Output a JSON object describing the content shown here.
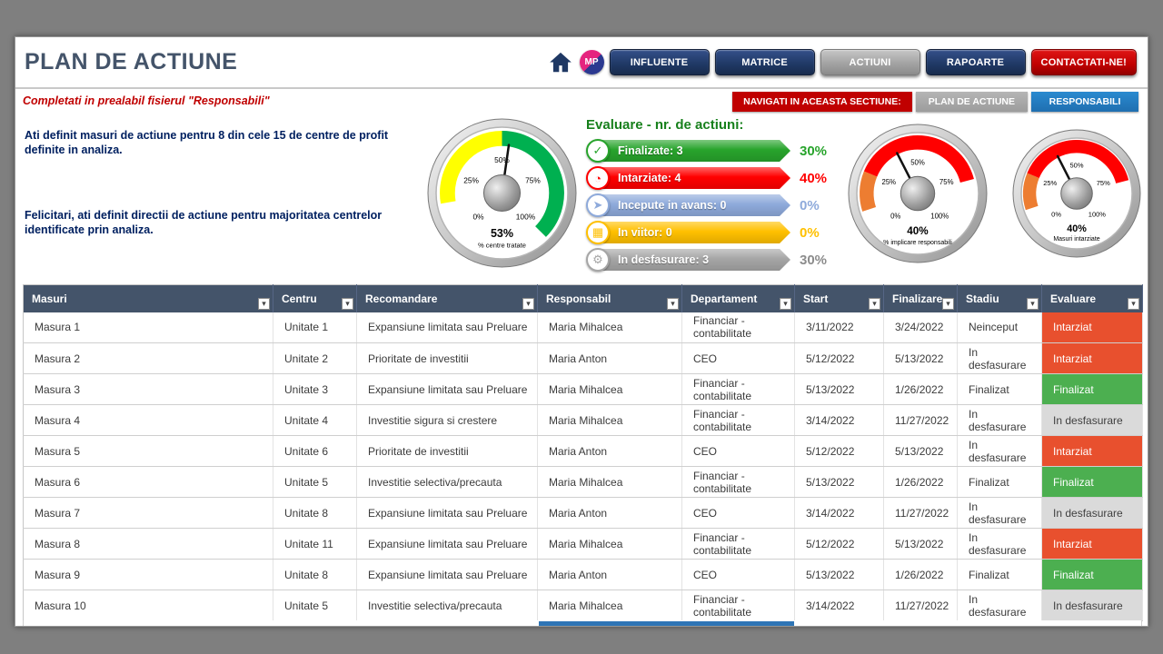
{
  "theme": {
    "header_text": "#44546A",
    "nav_navy": "#1F3864",
    "nav_red": "#C00000",
    "accent_blue": "#1F6FB0",
    "notice_red": "#C00000",
    "message_navy": "#002060",
    "table_header_bg": "#44546A",
    "legend_title_green": "#17801c"
  },
  "header": {
    "title": "PLAN DE ACTIUNE",
    "logo_text": "MP",
    "nav": [
      {
        "label": "INFLUENTE",
        "style": "navy"
      },
      {
        "label": "MATRICE",
        "style": "navy"
      },
      {
        "label": "ACTIUNI",
        "style": "gray"
      },
      {
        "label": "RAPOARTE",
        "style": "navy"
      },
      {
        "label": "CONTACTATI-NE!",
        "style": "red"
      }
    ]
  },
  "subheader": {
    "notice": "Completati in prealabil fisierul \"Responsabili\"",
    "navigate_label": "NAVIGATI IN ACEASTA SECTIUNE:",
    "buttons": [
      {
        "label": "PLAN DE ACTIUNE",
        "style": "gray"
      },
      {
        "label": "RESPONSABILI",
        "style": "blue"
      }
    ]
  },
  "messages": {
    "line1": "Ati definit masuri de actiune pentru 8 din cele 15 de centre de profit definite in analiza.",
    "line2": "Felicitari, ati definit directii de actiune pentru majoritatea centrelor identificate prin analiza."
  },
  "chart_data": [
    {
      "type": "gauge",
      "value": 53,
      "unit": "%",
      "label": "% centre tratate",
      "range": [
        0,
        100
      ],
      "ticks": [
        "0%",
        "25%",
        "50%",
        "75%",
        "100%"
      ],
      "segments": [
        {
          "from": 0,
          "to": 13,
          "color": "#FFFFFF"
        },
        {
          "from": 13,
          "to": 50,
          "color": "#FFFF00"
        },
        {
          "from": 50,
          "to": 100,
          "color": "#00B050"
        }
      ]
    },
    {
      "type": "gauge",
      "value": 40,
      "unit": "%",
      "label": "% implicare responsabili",
      "range": [
        0,
        100
      ],
      "ticks": [
        "0%",
        "25%",
        "50%",
        "75%",
        "100%"
      ],
      "segments": [
        {
          "from": 0,
          "to": 10,
          "color": "#FFFFFF"
        },
        {
          "from": 10,
          "to": 25,
          "color": "#ED7D31"
        },
        {
          "from": 25,
          "to": 78,
          "color": "#FF0000"
        },
        {
          "from": 78,
          "to": 100,
          "color": "#FFFFFF"
        }
      ]
    },
    {
      "type": "gauge",
      "value": 40,
      "unit": "%",
      "label": "Masuri intarziate",
      "range": [
        0,
        100
      ],
      "ticks": [
        "0%",
        "25%",
        "50%",
        "75%",
        "100%"
      ],
      "segments": [
        {
          "from": 0,
          "to": 10,
          "color": "#FFFFFF"
        },
        {
          "from": 10,
          "to": 25,
          "color": "#ED7D31"
        },
        {
          "from": 25,
          "to": 78,
          "color": "#FF0000"
        },
        {
          "from": 78,
          "to": 100,
          "color": "#FFFFFF"
        }
      ]
    },
    {
      "type": "bar",
      "title": "Evaluare - nr. de actiuni:",
      "categories": [
        "Finalizate",
        "Intarziate",
        "Incepute in avans",
        "In viitor",
        "In desfasurare"
      ],
      "values": [
        3,
        4,
        0,
        0,
        3
      ],
      "percents": [
        "30%",
        "40%",
        "0%",
        "0%",
        "30%"
      ],
      "colors": [
        "#28A42C",
        "#FF0000",
        "#8EAADB",
        "#FFC000",
        "#A6A6A6"
      ],
      "pct_colors": [
        "#28A42C",
        "#FF0000",
        "#8EAADB",
        "#FFC000",
        "#8C8C8C"
      ],
      "icons": [
        {
          "name": "swirl-icon",
          "glyph": "✓"
        },
        {
          "name": "clock-icon",
          "glyph": "◔"
        },
        {
          "name": "rocket-icon",
          "glyph": "➤"
        },
        {
          "name": "calendar-icon",
          "glyph": "▦"
        },
        {
          "name": "gears-icon",
          "glyph": "⚙"
        }
      ]
    }
  ],
  "evaluation_styles": {
    "Intarziat": {
      "bg": "#E8502E",
      "fg": "#FFFFFF"
    },
    "Finalizat": {
      "bg": "#4CAF50",
      "fg": "#FFFFFF"
    },
    "In desfasurare": {
      "bg": "#DADADA",
      "fg": "#3F3F3F"
    }
  },
  "table": {
    "columns": [
      {
        "label": "Masuri",
        "field": "masura"
      },
      {
        "label": "Centru",
        "field": "centru"
      },
      {
        "label": "Recomandare",
        "field": "recomandare"
      },
      {
        "label": "Responsabil",
        "field": "responsabil"
      },
      {
        "label": "Departament",
        "field": "departament"
      },
      {
        "label": "Start",
        "field": "start"
      },
      {
        "label": "Finalizare",
        "field": "finalizare"
      },
      {
        "label": "Stadiu",
        "field": "stadiu"
      },
      {
        "label": "Evaluare",
        "field": "evaluare"
      }
    ],
    "rows": [
      {
        "masura": "Masura 1",
        "centru": "Unitate 1",
        "recomandare": "Expansiune limitata sau Preluare",
        "responsabil": "Maria Mihalcea",
        "departament": "Financiar - contabilitate",
        "start": "3/11/2022",
        "finalizare": "3/24/2022",
        "stadiu": "Neinceput",
        "evaluare": "Intarziat"
      },
      {
        "masura": "Masura 2",
        "centru": "Unitate 2",
        "recomandare": "Prioritate de investitii",
        "responsabil": "Maria Anton",
        "departament": "CEO",
        "start": "5/12/2022",
        "finalizare": "5/13/2022",
        "stadiu": "In desfasurare",
        "evaluare": "Intarziat"
      },
      {
        "masura": "Masura 3",
        "centru": "Unitate 3",
        "recomandare": "Expansiune limitata sau Preluare",
        "responsabil": "Maria Mihalcea",
        "departament": "Financiar - contabilitate",
        "start": "5/13/2022",
        "finalizare": "1/26/2022",
        "stadiu": "Finalizat",
        "evaluare": "Finalizat"
      },
      {
        "masura": "Masura 4",
        "centru": "Unitate 4",
        "recomandare": "Investitie sigura si crestere",
        "responsabil": "Maria Mihalcea",
        "departament": "Financiar - contabilitate",
        "start": "3/14/2022",
        "finalizare": "11/27/2022",
        "stadiu": "In desfasurare",
        "evaluare": "In desfasurare"
      },
      {
        "masura": "Masura 5",
        "centru": "Unitate 6",
        "recomandare": "Prioritate de investitii",
        "responsabil": "Maria Anton",
        "departament": "CEO",
        "start": "5/12/2022",
        "finalizare": "5/13/2022",
        "stadiu": "In desfasurare",
        "evaluare": "Intarziat"
      },
      {
        "masura": "Masura 6",
        "centru": "Unitate 5",
        "recomandare": "Investitie selectiva/precauta",
        "responsabil": "Maria Mihalcea",
        "departament": "Financiar - contabilitate",
        "start": "5/13/2022",
        "finalizare": "1/26/2022",
        "stadiu": "Finalizat",
        "evaluare": "Finalizat"
      },
      {
        "masura": "Masura 7",
        "centru": "Unitate 8",
        "recomandare": "Expansiune limitata sau Preluare",
        "responsabil": "Maria Anton",
        "departament": "CEO",
        "start": "3/14/2022",
        "finalizare": "11/27/2022",
        "stadiu": "In desfasurare",
        "evaluare": "In desfasurare"
      },
      {
        "masura": "Masura 8",
        "centru": "Unitate 11",
        "recomandare": "Expansiune limitata sau Preluare",
        "responsabil": "Maria Mihalcea",
        "departament": "Financiar - contabilitate",
        "start": "5/12/2022",
        "finalizare": "5/13/2022",
        "stadiu": "In desfasurare",
        "evaluare": "Intarziat"
      },
      {
        "masura": "Masura 9",
        "centru": "Unitate 8",
        "recomandare": "Expansiune limitata sau Preluare",
        "responsabil": "Maria Anton",
        "departament": "CEO",
        "start": "5/13/2022",
        "finalizare": "1/26/2022",
        "stadiu": "Finalizat",
        "evaluare": "Finalizat"
      },
      {
        "masura": "Masura 10",
        "centru": "Unitate 5",
        "recomandare": "Investitie selectiva/precauta",
        "responsabil": "Maria Mihalcea",
        "departament": "Financiar - contabilitate",
        "start": "3/14/2022",
        "finalizare": "11/27/2022",
        "stadiu": "In desfasurare",
        "evaluare": "In desfasurare"
      }
    ]
  }
}
